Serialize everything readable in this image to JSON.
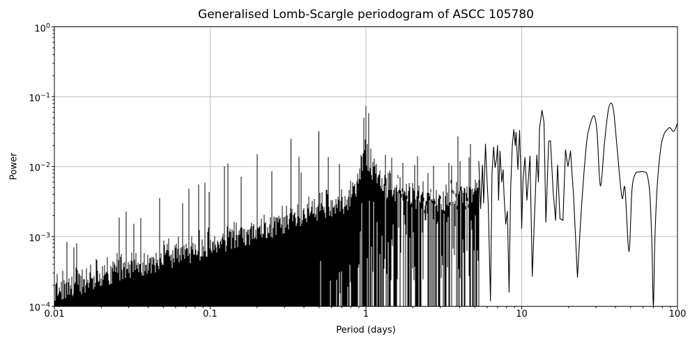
{
  "figure": {
    "background": "#ffffff"
  },
  "chart_data": {
    "type": "line",
    "title": "Generalised Lomb-Scargle periodogram of ASCC 105780",
    "xlabel": "Period (days)",
    "ylabel": "Power",
    "xscale": "log",
    "yscale": "log",
    "xlim": [
      0.01,
      100
    ],
    "ylim": [
      0.0001,
      1
    ],
    "xticks": [
      0.01,
      0.1,
      1,
      10,
      100
    ],
    "xtick_labels": [
      "0.01",
      "0.1",
      "1",
      "10",
      "100"
    ],
    "ytick_base": "10",
    "ytick_exponents": [
      "0",
      "−1",
      "−2",
      "−3",
      "−4"
    ],
    "yticks": [
      1,
      0.1,
      0.01,
      0.001,
      0.0001
    ],
    "grid": true,
    "legend": null,
    "line_color": "#000000",
    "grid_color": "#b0b0b0",
    "notable_peaks": [
      {
        "period": 0.13,
        "power": 0.011
      },
      {
        "period": 0.2,
        "power": 0.015
      },
      {
        "period": 0.33,
        "power": 0.025
      },
      {
        "period": 0.5,
        "power": 0.032
      },
      {
        "period": 0.97,
        "power": 0.05
      },
      {
        "period": 1.0,
        "power": 0.073
      },
      {
        "period": 1.04,
        "power": 0.058
      },
      {
        "period": 3.9,
        "power": 0.027
      },
      {
        "period": 4.7,
        "power": 0.021
      },
      {
        "period": 8.9,
        "power": 0.034
      },
      {
        "period": 13.5,
        "power": 0.064
      },
      {
        "period": 29.2,
        "power": 0.053
      },
      {
        "period": 37.4,
        "power": 0.081
      }
    ],
    "dense_region": {
      "note": "For periods 0.01-5.3 d the periodogram is an unresolved dense band of peaks; envelope gives typical top power, occasional spike maxima, and probability/depth (in decades above the 1e-4 floor) of white gaps at the bottom of the band.",
      "period_range": [
        0.01,
        5.3
      ],
      "seed": 11,
      "spike_prob": 0.05,
      "riser_prob": 0.3,
      "envelope": [
        {
          "p": 0.01,
          "top": 0.00032,
          "spike": 0.0008,
          "gapP": 0,
          "gapD": 0
        },
        {
          "p": 0.014,
          "top": 0.0004,
          "spike": 0.0011,
          "gapP": 0,
          "gapD": 0
        },
        {
          "p": 0.02,
          "top": 0.0005,
          "spike": 0.0016,
          "gapP": 0,
          "gapD": 0
        },
        {
          "p": 0.03,
          "top": 0.00065,
          "spike": 0.0024,
          "gapP": 0,
          "gapD": 0
        },
        {
          "p": 0.05,
          "top": 0.0009,
          "spike": 0.0042,
          "gapP": 0,
          "gapD": 0
        },
        {
          "p": 0.07,
          "top": 0.0011,
          "spike": 0.0055,
          "gapP": 0,
          "gapD": 0
        },
        {
          "p": 0.1,
          "top": 0.0014,
          "spike": 0.008,
          "gapP": 0,
          "gapD": 0
        },
        {
          "p": 0.13,
          "top": 0.0017,
          "spike": 0.011,
          "gapP": 0,
          "gapD": 0
        },
        {
          "p": 0.2,
          "top": 0.0022,
          "spike": 0.015,
          "gapP": 0,
          "gapD": 0
        },
        {
          "p": 0.3,
          "top": 0.003,
          "spike": 0.025,
          "gapP": 0,
          "gapD": 0
        },
        {
          "p": 0.4,
          "top": 0.0038,
          "spike": 0.013,
          "gapP": 0.05,
          "gapD": 0.5
        },
        {
          "p": 0.5,
          "top": 0.0045,
          "spike": 0.032,
          "gapP": 0.18,
          "gapD": 0.8
        },
        {
          "p": 0.65,
          "top": 0.005,
          "spike": 0.014,
          "gapP": 0.2,
          "gapD": 1.0
        },
        {
          "p": 0.8,
          "top": 0.007,
          "spike": 0.02,
          "gapP": 0.25,
          "gapD": 1.3
        },
        {
          "p": 0.92,
          "top": 0.014,
          "spike": 0.045,
          "gapP": 0.3,
          "gapD": 1.6
        },
        {
          "p": 1.0,
          "top": 0.03,
          "spike": 0.075,
          "gapP": 0.3,
          "gapD": 1.8
        },
        {
          "p": 1.1,
          "top": 0.016,
          "spike": 0.032,
          "gapP": 0.35,
          "gapD": 1.8
        },
        {
          "p": 1.25,
          "top": 0.01,
          "spike": 0.022,
          "gapP": 0.4,
          "gapD": 2.0
        },
        {
          "p": 1.6,
          "top": 0.0085,
          "spike": 0.018,
          "gapP": 0.45,
          "gapD": 2.2
        },
        {
          "p": 2.0,
          "top": 0.007,
          "spike": 0.015,
          "gapP": 0.5,
          "gapD": 2.4
        },
        {
          "p": 2.6,
          "top": 0.006,
          "spike": 0.012,
          "gapP": 0.55,
          "gapD": 2.4
        },
        {
          "p": 3.3,
          "top": 0.0065,
          "spike": 0.013,
          "gapP": 0.55,
          "gapD": 2.4
        },
        {
          "p": 4.0,
          "top": 0.007,
          "spike": 0.02,
          "gapP": 0.55,
          "gapD": 2.4
        },
        {
          "p": 4.7,
          "top": 0.008,
          "spike": 0.022,
          "gapP": 0.5,
          "gapD": 2.4
        },
        {
          "p": 5.3,
          "top": 0.01,
          "spike": 0.021,
          "gapP": 0.5,
          "gapD": 2.4
        }
      ]
    },
    "curve_points": [
      [
        5.3,
        0.012
      ],
      [
        5.45,
        0.0025
      ],
      [
        5.6,
        0.0105
      ],
      [
        5.7,
        0.003
      ],
      [
        5.85,
        0.021
      ],
      [
        6.0,
        0.006
      ],
      [
        6.1,
        0.0029
      ],
      [
        6.3,
        0.00012
      ],
      [
        6.45,
        0.008
      ],
      [
        6.6,
        0.019
      ],
      [
        6.75,
        0.0097
      ],
      [
        6.9,
        0.013
      ],
      [
        7.0,
        0.02
      ],
      [
        7.1,
        0.0033
      ],
      [
        7.25,
        0.0167
      ],
      [
        7.45,
        0.006
      ],
      [
        7.6,
        0.009
      ],
      [
        7.7,
        0.004
      ],
      [
        7.9,
        0.0015
      ],
      [
        8.1,
        0.0023
      ],
      [
        8.3,
        0.00016
      ],
      [
        8.5,
        0.005
      ],
      [
        8.7,
        0.02
      ],
      [
        8.9,
        0.034
      ],
      [
        9.1,
        0.02
      ],
      [
        9.2,
        0.031
      ],
      [
        9.45,
        0.0091
      ],
      [
        9.7,
        0.033
      ],
      [
        9.85,
        0.01
      ],
      [
        10.0,
        0.0013
      ],
      [
        10.2,
        0.0066
      ],
      [
        10.5,
        0.0135
      ],
      [
        10.8,
        0.0033
      ],
      [
        11.0,
        0.006
      ],
      [
        11.3,
        0.0142
      ],
      [
        11.7,
        0.00027
      ],
      [
        12.0,
        0.0013
      ],
      [
        12.5,
        0.0146
      ],
      [
        12.8,
        0.006
      ],
      [
        13.0,
        0.035
      ],
      [
        13.5,
        0.064
      ],
      [
        13.9,
        0.043
      ],
      [
        14.3,
        0.0016
      ],
      [
        14.9,
        0.023
      ],
      [
        15.3,
        0.0235
      ],
      [
        15.9,
        0.0046
      ],
      [
        16.5,
        0.0017
      ],
      [
        17.0,
        0.0105
      ],
      [
        17.6,
        0.0018
      ],
      [
        18.4,
        0.0017
      ],
      [
        19.1,
        0.0174
      ],
      [
        19.8,
        0.01
      ],
      [
        20.6,
        0.0166
      ],
      [
        21.5,
        0.004
      ],
      [
        22.8,
        0.00026
      ],
      [
        24.0,
        0.002
      ],
      [
        26.0,
        0.02
      ],
      [
        27.5,
        0.04
      ],
      [
        29.2,
        0.053
      ],
      [
        30.5,
        0.03
      ],
      [
        32.0,
        0.0053
      ],
      [
        34.0,
        0.022
      ],
      [
        35.8,
        0.06
      ],
      [
        37.4,
        0.081
      ],
      [
        39.0,
        0.06
      ],
      [
        41.0,
        0.018
      ],
      [
        44.0,
        0.0036
      ],
      [
        46.0,
        0.0049
      ],
      [
        48.8,
        0.00061
      ],
      [
        51.0,
        0.0045
      ],
      [
        53.5,
        0.0078
      ],
      [
        57.0,
        0.0084
      ],
      [
        61.0,
        0.0084
      ],
      [
        64.0,
        0.0075
      ],
      [
        66.5,
        0.004
      ],
      [
        68.5,
        0.0008
      ],
      [
        70.0,
        0.0001
      ],
      [
        71.5,
        0.0008
      ],
      [
        74.0,
        0.005
      ],
      [
        78.0,
        0.018
      ],
      [
        82.0,
        0.029
      ],
      [
        86.0,
        0.034
      ],
      [
        89.5,
        0.036
      ],
      [
        93.5,
        0.032
      ],
      [
        96.5,
        0.034
      ],
      [
        100.0,
        0.042
      ]
    ]
  }
}
